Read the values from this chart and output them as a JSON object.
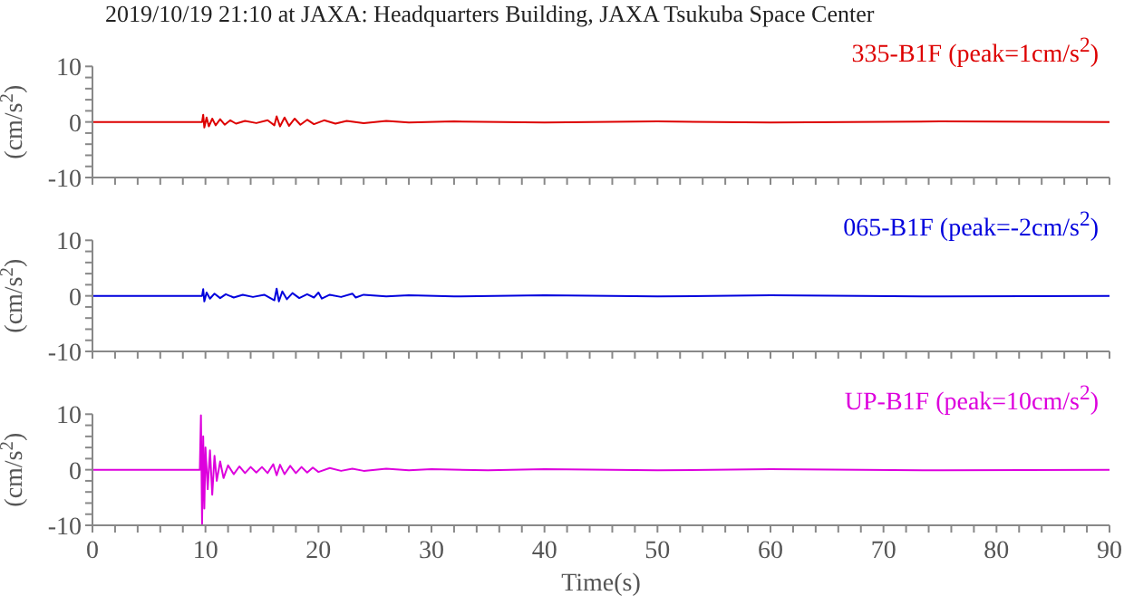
{
  "chart_data": [
    {
      "type": "line",
      "title": "2019/10/19 21:10 at JAXA: Headquarters Building, JAXA Tsukuba Space Center",
      "ylabel": "(cm/s$^{2}$)",
      "legend": "top right",
      "tick_labels": "y",
      "xlim": [
        0,
        90
      ],
      "xticks": [
        {
          "value": 0,
          "label": null
        },
        {
          "value": 2,
          "label": null
        },
        {
          "value": 4,
          "label": null
        },
        {
          "value": 6,
          "label": null
        },
        {
          "value": 8,
          "label": null
        },
        {
          "value": 10,
          "label": null
        },
        {
          "value": 12,
          "label": null
        },
        {
          "value": 14,
          "label": null
        },
        {
          "value": 16,
          "label": null
        },
        {
          "value": 18,
          "label": null
        },
        {
          "value": 20,
          "label": null
        },
        {
          "value": 22,
          "label": null
        },
        {
          "value": 24,
          "label": null
        },
        {
          "value": 26,
          "label": null
        },
        {
          "value": 28,
          "label": null
        },
        {
          "value": 30,
          "label": null
        },
        {
          "value": 32,
          "label": null
        },
        {
          "value": 34,
          "label": null
        },
        {
          "value": 36,
          "label": null
        },
        {
          "value": 38,
          "label": null
        },
        {
          "value": 40,
          "label": null
        },
        {
          "value": 42,
          "label": null
        },
        {
          "value": 44,
          "label": null
        },
        {
          "value": 46,
          "label": null
        },
        {
          "value": 48,
          "label": null
        },
        {
          "value": 50,
          "label": null
        },
        {
          "value": 52,
          "label": null
        },
        {
          "value": 54,
          "label": null
        },
        {
          "value": 56,
          "label": null
        },
        {
          "value": 58,
          "label": null
        },
        {
          "value": 60,
          "label": null
        },
        {
          "value": 62,
          "label": null
        },
        {
          "value": 64,
          "label": null
        },
        {
          "value": 66,
          "label": null
        },
        {
          "value": 68,
          "label": null
        },
        {
          "value": 70,
          "label": null
        },
        {
          "value": 72,
          "label": null
        },
        {
          "value": 74,
          "label": null
        },
        {
          "value": 76,
          "label": null
        },
        {
          "value": 78,
          "label": null
        },
        {
          "value": 80,
          "label": null
        },
        {
          "value": 82,
          "label": null
        },
        {
          "value": 84,
          "label": null
        },
        {
          "value": 86,
          "label": null
        },
        {
          "value": 88,
          "label": null
        },
        {
          "value": 90,
          "label": null
        }
      ],
      "ylim": [
        -10,
        10
      ],
      "yticks": [
        -10,
        {
          "value": -8,
          "label": null
        },
        {
          "value": -6,
          "label": null
        },
        {
          "value": -4,
          "label": null
        },
        {
          "value": -2,
          "label": null
        },
        0,
        {
          "value": 2,
          "label": null
        },
        {
          "value": 4,
          "label": null
        },
        {
          "value": 6,
          "label": null
        },
        {
          "value": 8,
          "label": null
        },
        10
      ],
      "series": [
        {
          "name": "335-B1F (peak=1cm/s$^{2}$)",
          "color": "#dd0000",
          "x": [
            0,
            9.7,
            9.8,
            9.9,
            10.1,
            10.3,
            10.6,
            10.9,
            11.3,
            11.7,
            12.2,
            12.7,
            13.5,
            14.5,
            15.5,
            16.1,
            16.3,
            16.6,
            17,
            17.4,
            17.9,
            18.4,
            19,
            19.6,
            20.5,
            21.5,
            22.5,
            24,
            26,
            28,
            32,
            40,
            50,
            60,
            75,
            90
          ],
          "values": [
            0,
            0,
            1.3,
            -1.0,
            0.8,
            -0.8,
            0.6,
            -0.6,
            0.5,
            -0.5,
            0.3,
            -0.3,
            0.2,
            -0.2,
            0.3,
            -0.6,
            1.0,
            -0.8,
            0.8,
            -0.7,
            0.6,
            -0.5,
            0.4,
            -0.4,
            0.3,
            -0.3,
            0.2,
            -0.2,
            0.2,
            -0.1,
            0.1,
            -0.1,
            0.1,
            -0.1,
            0.1,
            0
          ]
        }
      ]
    },
    {
      "type": "line",
      "ylabel": "(cm/s$^{2}$)",
      "legend": "top right",
      "tick_labels": "y",
      "xlim": [
        0,
        90
      ],
      "xticks": [
        {
          "value": 0,
          "label": null
        },
        {
          "value": 2,
          "label": null
        },
        {
          "value": 4,
          "label": null
        },
        {
          "value": 6,
          "label": null
        },
        {
          "value": 8,
          "label": null
        },
        {
          "value": 10,
          "label": null
        },
        {
          "value": 12,
          "label": null
        },
        {
          "value": 14,
          "label": null
        },
        {
          "value": 16,
          "label": null
        },
        {
          "value": 18,
          "label": null
        },
        {
          "value": 20,
          "label": null
        },
        {
          "value": 22,
          "label": null
        },
        {
          "value": 24,
          "label": null
        },
        {
          "value": 26,
          "label": null
        },
        {
          "value": 28,
          "label": null
        },
        {
          "value": 30,
          "label": null
        },
        {
          "value": 32,
          "label": null
        },
        {
          "value": 34,
          "label": null
        },
        {
          "value": 36,
          "label": null
        },
        {
          "value": 38,
          "label": null
        },
        {
          "value": 40,
          "label": null
        },
        {
          "value": 42,
          "label": null
        },
        {
          "value": 44,
          "label": null
        },
        {
          "value": 46,
          "label": null
        },
        {
          "value": 48,
          "label": null
        },
        {
          "value": 50,
          "label": null
        },
        {
          "value": 52,
          "label": null
        },
        {
          "value": 54,
          "label": null
        },
        {
          "value": 56,
          "label": null
        },
        {
          "value": 58,
          "label": null
        },
        {
          "value": 60,
          "label": null
        },
        {
          "value": 62,
          "label": null
        },
        {
          "value": 64,
          "label": null
        },
        {
          "value": 66,
          "label": null
        },
        {
          "value": 68,
          "label": null
        },
        {
          "value": 70,
          "label": null
        },
        {
          "value": 72,
          "label": null
        },
        {
          "value": 74,
          "label": null
        },
        {
          "value": 76,
          "label": null
        },
        {
          "value": 78,
          "label": null
        },
        {
          "value": 80,
          "label": null
        },
        {
          "value": 82,
          "label": null
        },
        {
          "value": 84,
          "label": null
        },
        {
          "value": 86,
          "label": null
        },
        {
          "value": 88,
          "label": null
        },
        {
          "value": 90,
          "label": null
        }
      ],
      "ylim": [
        -10,
        10
      ],
      "yticks": [
        -10,
        {
          "value": -8,
          "label": null
        },
        {
          "value": -6,
          "label": null
        },
        {
          "value": -4,
          "label": null
        },
        {
          "value": -2,
          "label": null
        },
        0,
        {
          "value": 2,
          "label": null
        },
        {
          "value": 4,
          "label": null
        },
        {
          "value": 6,
          "label": null
        },
        {
          "value": 8,
          "label": null
        },
        10
      ],
      "series": [
        {
          "name": "065-B1F (peak=-2cm/s$^{2}$)",
          "color": "#0000dd",
          "x": [
            0,
            9.7,
            9.8,
            9.9,
            10.1,
            10.4,
            10.8,
            11.3,
            11.8,
            12.5,
            13.3,
            14.2,
            15.2,
            16.1,
            16.3,
            16.5,
            16.8,
            17.2,
            17.7,
            18.3,
            19,
            19.6,
            20,
            20.3,
            21,
            22,
            23,
            23.3,
            24,
            26,
            28,
            32,
            40,
            50,
            60,
            75,
            90
          ],
          "values": [
            0,
            0,
            1.2,
            -1.0,
            0.6,
            -0.5,
            0.4,
            -0.4,
            0.3,
            -0.3,
            0.2,
            -0.2,
            0.2,
            -0.8,
            1.3,
            -1.0,
            0.8,
            -0.6,
            0.5,
            -0.4,
            0.3,
            -0.3,
            0.6,
            -0.5,
            0.2,
            -0.2,
            0.4,
            -0.3,
            0.2,
            -0.1,
            0.1,
            -0.1,
            0.1,
            -0.1,
            0.1,
            -0.1,
            0
          ]
        }
      ]
    },
    {
      "type": "line",
      "ylabel": "(cm/s$^{2}$)",
      "xlabel": "Time(s)",
      "legend": "top right",
      "xlim": [
        0,
        90
      ],
      "xticks": [
        0,
        {
          "value": 2,
          "label": null
        },
        {
          "value": 4,
          "label": null
        },
        {
          "value": 6,
          "label": null
        },
        {
          "value": 8,
          "label": null
        },
        10,
        {
          "value": 12,
          "label": null
        },
        {
          "value": 14,
          "label": null
        },
        {
          "value": 16,
          "label": null
        },
        {
          "value": 18,
          "label": null
        },
        20,
        {
          "value": 22,
          "label": null
        },
        {
          "value": 24,
          "label": null
        },
        {
          "value": 26,
          "label": null
        },
        {
          "value": 28,
          "label": null
        },
        30,
        {
          "value": 32,
          "label": null
        },
        {
          "value": 34,
          "label": null
        },
        {
          "value": 36,
          "label": null
        },
        {
          "value": 38,
          "label": null
        },
        40,
        {
          "value": 42,
          "label": null
        },
        {
          "value": 44,
          "label": null
        },
        {
          "value": 46,
          "label": null
        },
        {
          "value": 48,
          "label": null
        },
        50,
        {
          "value": 52,
          "label": null
        },
        {
          "value": 54,
          "label": null
        },
        {
          "value": 56,
          "label": null
        },
        {
          "value": 58,
          "label": null
        },
        60,
        {
          "value": 62,
          "label": null
        },
        {
          "value": 64,
          "label": null
        },
        {
          "value": 66,
          "label": null
        },
        {
          "value": 68,
          "label": null
        },
        70,
        {
          "value": 72,
          "label": null
        },
        {
          "value": 74,
          "label": null
        },
        {
          "value": 76,
          "label": null
        },
        {
          "value": 78,
          "label": null
        },
        80,
        {
          "value": 82,
          "label": null
        },
        {
          "value": 84,
          "label": null
        },
        {
          "value": 86,
          "label": null
        },
        {
          "value": 88,
          "label": null
        },
        90
      ],
      "ylim": [
        -10,
        10
      ],
      "yticks": [
        -10,
        {
          "value": -8,
          "label": null
        },
        {
          "value": -6,
          "label": null
        },
        {
          "value": -4,
          "label": null
        },
        {
          "value": -2,
          "label": null
        },
        0,
        {
          "value": 2,
          "label": null
        },
        {
          "value": 4,
          "label": null
        },
        {
          "value": 6,
          "label": null
        },
        {
          "value": 8,
          "label": null
        },
        10
      ],
      "series": [
        {
          "name": "UP-B1F (peak=10cm/s$^{2}$)",
          "color": "#dd00dd",
          "x": [
            0,
            9.5,
            9.6,
            9.7,
            9.8,
            9.9,
            10.0,
            10.2,
            10.4,
            10.6,
            10.8,
            11.0,
            11.3,
            11.6,
            12.0,
            12.5,
            13.0,
            13.5,
            14.0,
            14.5,
            15.0,
            15.5,
            16.0,
            16.3,
            16.6,
            17.0,
            17.5,
            18.0,
            18.5,
            19.0,
            19.5,
            20.0,
            21,
            22,
            23,
            24,
            26,
            28,
            30,
            35,
            40,
            50,
            60,
            75,
            90
          ],
          "values": [
            0,
            0,
            9.8,
            -9.8,
            6,
            -7,
            4,
            -3.5,
            3.5,
            -4.5,
            2.5,
            -2,
            1.5,
            -1.5,
            0.8,
            -0.8,
            0.6,
            -0.6,
            0.5,
            -0.5,
            0.5,
            -0.6,
            1.0,
            -1.0,
            0.9,
            -0.8,
            0.7,
            -0.6,
            0.5,
            -0.5,
            0.4,
            -0.4,
            0.3,
            -0.2,
            0.2,
            -0.2,
            0.2,
            -0.1,
            0.1,
            -0.1,
            0.1,
            -0.1,
            0.1,
            -0.1,
            0
          ]
        }
      ]
    }
  ]
}
